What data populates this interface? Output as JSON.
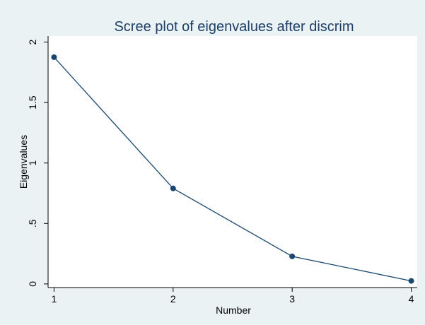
{
  "chart_data": {
    "type": "line",
    "title": "Scree plot of eigenvalues after discrim",
    "xlabel": "Number",
    "ylabel": "Eigenvalues",
    "x": [
      1,
      2,
      3,
      4
    ],
    "y": [
      1.875,
      0.79,
      0.228,
      0.025
    ],
    "xlim": [
      0.95,
      4.05
    ],
    "ylim": [
      -0.03,
      2.05
    ],
    "xticks": [
      1,
      2,
      3,
      4
    ],
    "xtick_labels": [
      "1",
      "2",
      "3",
      "4"
    ],
    "yticks": [
      0,
      0.5,
      1,
      1.5,
      2
    ],
    "ytick_labels": [
      "0",
      ".5",
      "1",
      "1.5",
      "2"
    ],
    "grid": false,
    "marker": "circle",
    "colors": {
      "series": "#1a476f",
      "title": "#1e3f66",
      "background": "#eaf2f3",
      "plot_background": "#ffffff"
    }
  }
}
